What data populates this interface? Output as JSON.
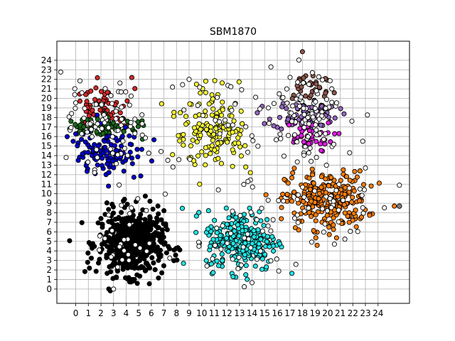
{
  "chart_data": {
    "type": "scatter",
    "title": "SBM1870",
    "xlabel": "",
    "ylabel": "",
    "xlim": [
      -1.5,
      26.5
    ],
    "ylim": [
      -1.5,
      26
    ],
    "grid": true,
    "x_ticks": [
      0,
      1,
      2,
      3,
      4,
      5,
      6,
      7,
      8,
      9,
      10,
      11,
      12,
      13,
      14,
      15,
      16,
      17,
      18,
      19,
      20,
      21,
      22,
      23,
      24
    ],
    "y_ticks": [
      0,
      1,
      2,
      3,
      4,
      5,
      6,
      7,
      8,
      9,
      10,
      11,
      12,
      13,
      14,
      15,
      16,
      17,
      18,
      19,
      20,
      21,
      22,
      23,
      24
    ],
    "marker_edge_color": "#000000",
    "clusters": [
      {
        "color": "#d62728",
        "count": 60,
        "center": [
          2.0,
          19.2
        ],
        "spread": [
          1.1,
          1.0
        ],
        "outliers": [
          [
            1.6,
            21.1
          ],
          [
            0.8,
            20.4
          ]
        ]
      },
      {
        "color": "#1a6b1a",
        "count": 70,
        "center": [
          2.3,
          17.0
        ],
        "spread": [
          1.6,
          0.55
        ],
        "outliers": [
          [
            4.7,
            16.5
          ]
        ]
      },
      {
        "color": "#0000cd",
        "count": 110,
        "center": [
          2.5,
          14.4
        ],
        "spread": [
          1.4,
          1.2
        ],
        "outliers": [
          [
            2.6,
            10.8
          ],
          [
            0.2,
            13.5
          ]
        ]
      },
      {
        "color": "#ffff33",
        "count": 150,
        "center": [
          11.0,
          16.8
        ],
        "spread": [
          1.4,
          2.1
        ],
        "outliers": [
          [
            10.0,
            14.4
          ],
          [
            13.5,
            12.8
          ]
        ]
      },
      {
        "color": "#8c564b",
        "count": 40,
        "center": [
          18.7,
          20.4
        ],
        "spread": [
          0.9,
          1.0
        ],
        "outliers": [
          [
            18.0,
            24.9
          ]
        ]
      },
      {
        "color": "#9467bd",
        "count": 70,
        "center": [
          18.2,
          18.3
        ],
        "spread": [
          1.3,
          0.8
        ],
        "outliers": [
          [
            16.2,
            18.0
          ]
        ]
      },
      {
        "color": "#e41ae4",
        "count": 40,
        "center": [
          18.3,
          16.0
        ],
        "spread": [
          1.1,
          0.8
        ],
        "outliers": [
          [
            17.3,
            15.4
          ]
        ]
      },
      {
        "color": "#ff7f0e",
        "count": 260,
        "center": [
          19.9,
          9.3
        ],
        "spread": [
          1.6,
          1.5
        ],
        "outliers": [
          [
            25.3,
            8.7
          ],
          [
            17.7,
            6.2
          ]
        ]
      },
      {
        "color": "#000000",
        "count": 520,
        "center": [
          4.4,
          4.8
        ],
        "spread": [
          1.3,
          1.7
        ],
        "outliers": [
          [
            2.0,
            7.4
          ],
          [
            4.2,
            1.2
          ]
        ]
      },
      {
        "color": "#22e5e5",
        "count": 260,
        "center": [
          13.2,
          5.1
        ],
        "spread": [
          1.4,
          1.6
        ],
        "outliers": [
          [
            13.5,
            1.5
          ],
          [
            10.5,
            6.3
          ]
        ]
      },
      {
        "color": "#ffffff",
        "count": 320,
        "center": [
          12.0,
          11.0
        ],
        "spread": [
          11.0,
          11.0
        ],
        "outliers": [
          [
            3.0,
            0.0
          ],
          [
            9.0,
            22.0
          ],
          [
            15.5,
            23.3
          ],
          [
            23.0,
            12.7
          ]
        ]
      }
    ]
  }
}
